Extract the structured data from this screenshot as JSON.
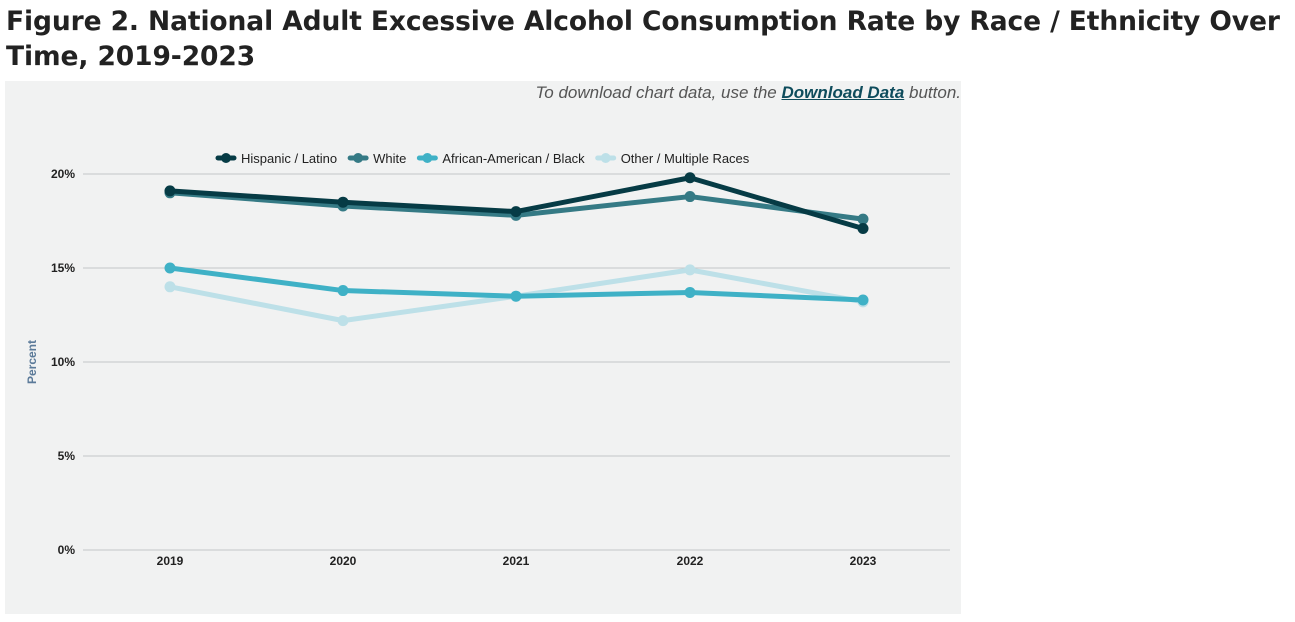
{
  "figure": {
    "title": "Figure 2. National Adult Excessive Alcohol Consumption Rate by Race / Ethnicity Over Time, 2019-2023",
    "note_prefix": "To download chart data, use the ",
    "note_link": "Download Data",
    "note_suffix": " button."
  },
  "chart_data": {
    "type": "line",
    "title": "National Adult Excessive Alcohol Consumption Rate by Race / Ethnicity Over Time, 2019-2023",
    "xlabel": "",
    "ylabel": "Percent",
    "x": [
      "2019",
      "2020",
      "2021",
      "2022",
      "2023"
    ],
    "ylim": [
      0,
      20
    ],
    "yticks": [
      0,
      5,
      10,
      15,
      20
    ],
    "ytick_labels": [
      "0%",
      "5%",
      "10%",
      "15%",
      "20%"
    ],
    "grid": true,
    "legend_position": "top",
    "series": [
      {
        "name": "Hispanic / Latino",
        "color": "#063b45",
        "values": [
          19.1,
          18.5,
          18.0,
          19.8,
          17.1
        ]
      },
      {
        "name": "White",
        "color": "#357a85",
        "values": [
          19.0,
          18.3,
          17.8,
          18.8,
          17.6
        ]
      },
      {
        "name": "African-American / Black",
        "color": "#3fb1c6",
        "values": [
          15.0,
          13.8,
          13.5,
          13.7,
          13.3
        ]
      },
      {
        "name": "Other / Multiple Races",
        "color": "#bde0e8",
        "values": [
          14.0,
          12.2,
          13.5,
          14.9,
          13.2
        ]
      }
    ]
  }
}
